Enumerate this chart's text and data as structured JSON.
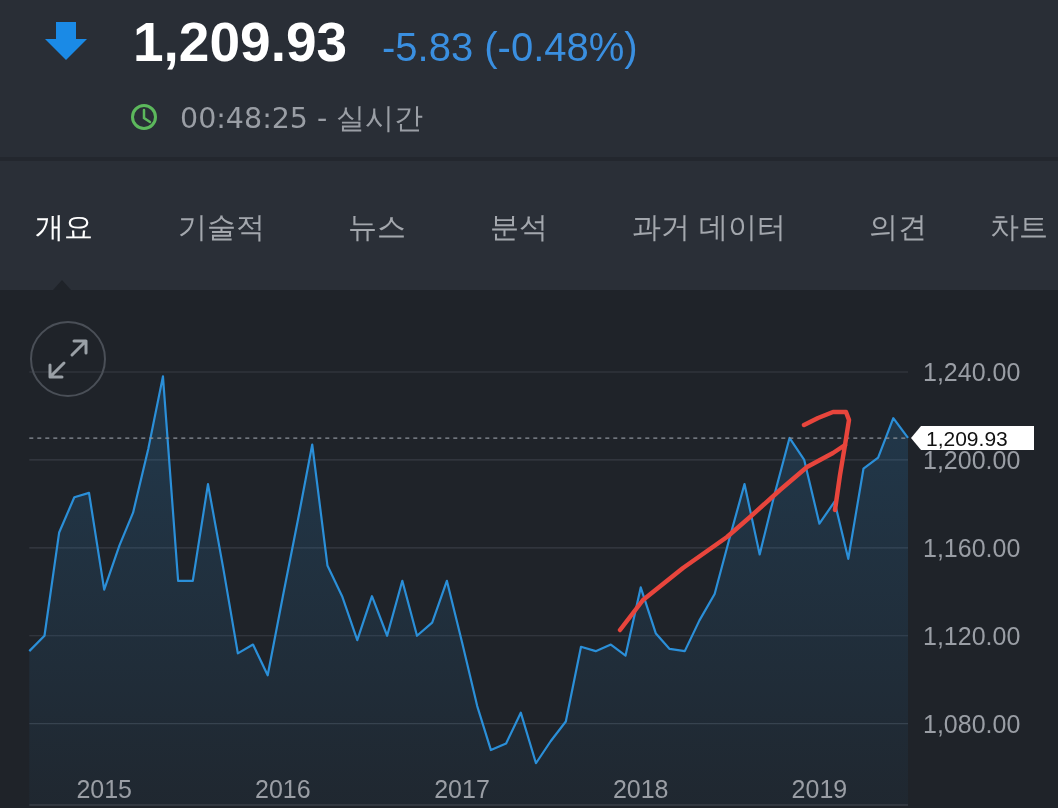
{
  "chart_data": {
    "type": "area",
    "title": "1,209.93",
    "subtitle": "-5.83 (-0.48%)",
    "annotations": [
      "00:48:25 - 실시간",
      "개요",
      "기술적",
      "뉴스",
      "분석",
      "과거 데이터",
      "의견",
      "차트"
    ],
    "x": [
      "2014-08",
      "2014-09",
      "2014-10",
      "2014-11",
      "2014-12",
      "2015-01",
      "2015-02",
      "2015-03",
      "2015-04",
      "2015-05",
      "2015-06",
      "2015-07",
      "2015-08",
      "2015-09",
      "2015-10",
      "2015-11",
      "2015-12",
      "2016-01",
      "2016-02",
      "2016-03",
      "2016-04",
      "2016-05",
      "2016-06",
      "2016-07",
      "2016-08",
      "2016-09",
      "2016-10",
      "2016-11",
      "2016-12",
      "2017-01",
      "2017-02",
      "2017-03",
      "2017-04",
      "2017-05",
      "2017-06",
      "2017-07",
      "2017-08",
      "2017-09",
      "2017-10",
      "2017-11",
      "2017-12",
      "2018-01",
      "2018-02",
      "2018-03",
      "2018-04",
      "2018-05",
      "2018-06",
      "2018-07",
      "2018-08",
      "2018-09",
      "2018-10",
      "2018-11",
      "2018-12",
      "2019-01",
      "2019-02",
      "2019-03",
      "2019-04",
      "2019-05",
      "2019-06",
      "2019-07"
    ],
    "series": [
      {
        "color": "#2b8fd8",
        "values": [
          1113,
          1120,
          1167,
          1183,
          1185,
          1141,
          1161,
          1176,
          1205,
          1238,
          1145,
          1145,
          1189,
          1151,
          1112,
          1116,
          1102,
          1138,
          1173,
          1207,
          1152,
          1138,
          1118,
          1138,
          1120,
          1145,
          1120,
          1126,
          1145,
          1117,
          1088,
          1068,
          1071,
          1085,
          1062,
          1072,
          1081,
          1115,
          1113,
          1116,
          1111,
          1142,
          1121,
          1114,
          1113,
          1127,
          1139,
          1164,
          1189,
          1157,
          1184,
          1210,
          1200,
          1171,
          1181,
          1155,
          1196,
          1201,
          1219,
          1210
        ]
      }
    ],
    "xlim": [
      "2014-08",
      "2019-07"
    ],
    "xticks": [
      "2015",
      "2016",
      "2017",
      "2018",
      "2019"
    ],
    "ylim": [
      1043,
      1240
    ],
    "yticks": [
      {
        "value": 1080,
        "label": "1,080.00"
      },
      {
        "value": 1120,
        "label": "1,120.00"
      },
      {
        "value": 1160,
        "label": "1,160.00"
      },
      {
        "value": 1200,
        "label": "1,200.00"
      },
      {
        "value": 1240,
        "label": "1,240.00"
      }
    ],
    "grid": "y",
    "ref_lines": [
      {
        "axis": "y",
        "value": 1209.93,
        "label": "1,209.93",
        "line_style": "dashed",
        "color": "#8c9199"
      }
    ]
  }
}
